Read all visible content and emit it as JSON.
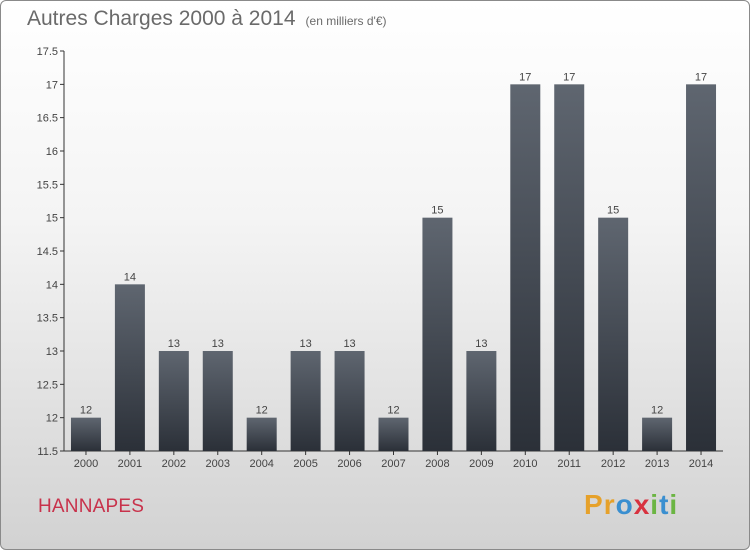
{
  "title": "Autres Charges 2000 à 2014",
  "subtitle": "(en milliers d'€)",
  "commune": "HANNAPES",
  "logo": {
    "letters": [
      "P",
      "r",
      "o",
      "x",
      "i",
      "t",
      "i"
    ],
    "colors": [
      "#e6a12a",
      "#e6a12a",
      "#3a8fd0",
      "#d8323f",
      "#6bb543",
      "#3a8fd0",
      "#6bb543"
    ]
  },
  "colors": {
    "bar_top": "#5f6670",
    "bar_bottom": "#2b3038",
    "axis": "#333333",
    "grid": "#d8d8d8"
  },
  "chart_data": {
    "type": "bar",
    "title": "Autres Charges 2000 à 2014",
    "subtitle": "(en milliers d'€)",
    "categories": [
      "2000",
      "2001",
      "2002",
      "2003",
      "2004",
      "2005",
      "2006",
      "2007",
      "2008",
      "2009",
      "2010",
      "2011",
      "2012",
      "2013",
      "2014"
    ],
    "values": [
      12,
      14,
      13,
      13,
      12,
      13,
      13,
      12,
      15,
      13,
      17,
      17,
      15,
      12,
      17
    ],
    "value_labels": [
      "12",
      "14",
      "13",
      "13",
      "12",
      "13",
      "13",
      "12",
      "15",
      "13",
      "17",
      "17",
      "15",
      "12",
      "17"
    ],
    "ylim": [
      11.5,
      17.5
    ],
    "yticks": [
      11.5,
      12,
      12.5,
      13,
      13.5,
      14,
      14.5,
      15,
      15.5,
      16,
      16.5,
      17,
      17.5
    ],
    "ytick_labels": [
      "11.5",
      "12",
      "12.5",
      "13",
      "13.5",
      "14",
      "14.5",
      "15",
      "15.5",
      "16",
      "16.5",
      "17",
      "17.5"
    ],
    "xlabel": "",
    "ylabel": "",
    "grid": false,
    "legend": "none"
  }
}
